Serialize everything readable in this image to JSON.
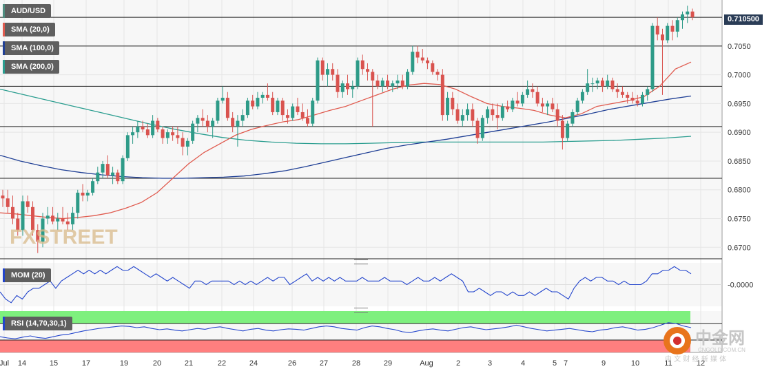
{
  "symbol": "AUD/USD",
  "indicators": {
    "sma20": "SMA (20,0)",
    "sma100": "SMA (100,0)",
    "sma200": "SMA (200,0)",
    "mom": "MOM (20)",
    "rsi": "RSI (14,70,30,1)"
  },
  "current_price": "0.710500",
  "watermark": "FXSTREET",
  "logo_text": {
    "brand": "中金网",
    "domain": "CNGOLD.COM.CN",
    "sub": "中 文 财 经 新 媒 体"
  },
  "colors": {
    "candle_up": "#2e9b88",
    "candle_down": "#d9534f",
    "sma20": "#e05a4e",
    "sma100": "#1f3f95",
    "sma200": "#2a9d8f",
    "mom": "#2244cc",
    "rsi_line": "#2244cc",
    "rsi_overbought": "#7ef07e",
    "rsi_oversold": "#ff7f7f"
  },
  "chart_data": [
    {
      "type": "candlestick",
      "title": "AUD/USD",
      "ylim": [
        0.668,
        0.713
      ],
      "y_ticks": [
        "0.6700",
        "0.6750",
        "0.6800",
        "0.6850",
        "0.6900",
        "0.6950",
        "0.7000",
        "0.7050"
      ],
      "x_ticks": [
        "Jul",
        "14",
        "15",
        "17",
        "19",
        "20",
        "21",
        "22",
        "24",
        "26",
        "27",
        "28",
        "29",
        "Aug",
        "2",
        "3",
        "4",
        "5",
        "7",
        "9",
        "10",
        "11",
        "12"
      ],
      "horizontal_levels": [
        0.71,
        0.705,
        0.698,
        0.691,
        0.682,
        0.668
      ],
      "candles": [
        [
          0.679,
          0.68,
          0.677,
          0.6785
        ],
        [
          0.6785,
          0.68,
          0.676,
          0.677
        ],
        [
          0.677,
          0.679,
          0.674,
          0.675
        ],
        [
          0.675,
          0.676,
          0.672,
          0.673
        ],
        [
          0.673,
          0.679,
          0.672,
          0.678
        ],
        [
          0.678,
          0.679,
          0.676,
          0.677
        ],
        [
          0.677,
          0.678,
          0.672,
          0.673
        ],
        [
          0.673,
          0.674,
          0.669,
          0.671
        ],
        [
          0.671,
          0.676,
          0.67,
          0.675
        ],
        [
          0.675,
          0.677,
          0.674,
          0.6755
        ],
        [
          0.6755,
          0.677,
          0.674,
          0.6745
        ],
        [
          0.6745,
          0.676,
          0.673,
          0.675
        ],
        [
          0.675,
          0.677,
          0.674,
          0.6745
        ],
        [
          0.6745,
          0.676,
          0.673,
          0.674
        ],
        [
          0.674,
          0.677,
          0.673,
          0.676
        ],
        [
          0.676,
          0.68,
          0.675,
          0.6795
        ],
        [
          0.6795,
          0.681,
          0.678,
          0.679
        ],
        [
          0.679,
          0.68,
          0.678,
          0.6795
        ],
        [
          0.6795,
          0.682,
          0.679,
          0.6815
        ],
        [
          0.6815,
          0.684,
          0.681,
          0.683
        ],
        [
          0.683,
          0.685,
          0.682,
          0.6845
        ],
        [
          0.6845,
          0.686,
          0.682,
          0.6825
        ],
        [
          0.6825,
          0.684,
          0.681,
          0.683
        ],
        [
          0.683,
          0.6835,
          0.681,
          0.6815
        ],
        [
          0.6815,
          0.686,
          0.681,
          0.6855
        ],
        [
          0.6855,
          0.69,
          0.685,
          0.6895
        ],
        [
          0.6895,
          0.691,
          0.688,
          0.69
        ],
        [
          0.69,
          0.692,
          0.689,
          0.691
        ],
        [
          0.691,
          0.692,
          0.69,
          0.6905
        ],
        [
          0.6905,
          0.6915,
          0.689,
          0.6895
        ],
        [
          0.6895,
          0.693,
          0.689,
          0.692
        ],
        [
          0.692,
          0.6925,
          0.69,
          0.6905
        ],
        [
          0.6905,
          0.691,
          0.688,
          0.689
        ],
        [
          0.689,
          0.6905,
          0.688,
          0.69
        ],
        [
          0.69,
          0.691,
          0.6885,
          0.6895
        ],
        [
          0.6895,
          0.691,
          0.688,
          0.689
        ],
        [
          0.689,
          0.69,
          0.686,
          0.6875
        ],
        [
          0.6875,
          0.689,
          0.686,
          0.6885
        ],
        [
          0.6885,
          0.692,
          0.688,
          0.6915
        ],
        [
          0.6915,
          0.693,
          0.69,
          0.6925
        ],
        [
          0.6925,
          0.694,
          0.691,
          0.692
        ],
        [
          0.692,
          0.693,
          0.69,
          0.691
        ],
        [
          0.691,
          0.6925,
          0.689,
          0.692
        ],
        [
          0.692,
          0.696,
          0.6915,
          0.6955
        ],
        [
          0.6955,
          0.698,
          0.695,
          0.696
        ],
        [
          0.696,
          0.697,
          0.692,
          0.6925
        ],
        [
          0.6925,
          0.6935,
          0.69,
          0.691
        ],
        [
          0.691,
          0.693,
          0.6875,
          0.692
        ],
        [
          0.692,
          0.694,
          0.691,
          0.693
        ],
        [
          0.693,
          0.696,
          0.6925,
          0.6955
        ],
        [
          0.6955,
          0.6965,
          0.694,
          0.6945
        ],
        [
          0.6945,
          0.697,
          0.694,
          0.696
        ],
        [
          0.696,
          0.697,
          0.695,
          0.6965
        ],
        [
          0.6965,
          0.6985,
          0.6955,
          0.696
        ],
        [
          0.696,
          0.697,
          0.693,
          0.6935
        ],
        [
          0.6935,
          0.696,
          0.693,
          0.6955
        ],
        [
          0.6955,
          0.696,
          0.692,
          0.693
        ],
        [
          0.693,
          0.694,
          0.6915,
          0.6925
        ],
        [
          0.6925,
          0.695,
          0.692,
          0.6945
        ],
        [
          0.6945,
          0.696,
          0.693,
          0.6935
        ],
        [
          0.6935,
          0.695,
          0.692,
          0.6925
        ],
        [
          0.6925,
          0.694,
          0.691,
          0.6915
        ],
        [
          0.6915,
          0.696,
          0.691,
          0.6955
        ],
        [
          0.6955,
          0.703,
          0.695,
          0.7025
        ],
        [
          0.7025,
          0.703,
          0.699,
          0.7
        ],
        [
          0.7,
          0.702,
          0.698,
          0.701
        ],
        [
          0.701,
          0.702,
          0.699,
          0.7
        ],
        [
          0.7,
          0.701,
          0.696,
          0.697
        ],
        [
          0.697,
          0.699,
          0.696,
          0.6985
        ],
        [
          0.6985,
          0.7,
          0.6965,
          0.6975
        ],
        [
          0.6975,
          0.699,
          0.696,
          0.698
        ],
        [
          0.698,
          0.703,
          0.6975,
          0.7025
        ],
        [
          0.7025,
          0.7035,
          0.7,
          0.701
        ],
        [
          0.701,
          0.702,
          0.699,
          0.7005
        ],
        [
          0.7005,
          0.701,
          0.691,
          0.699
        ],
        [
          0.699,
          0.7,
          0.6975,
          0.698
        ],
        [
          0.698,
          0.6995,
          0.697,
          0.699
        ],
        [
          0.699,
          0.7,
          0.6975,
          0.698
        ],
        [
          0.698,
          0.699,
          0.697,
          0.6985
        ],
        [
          0.6985,
          0.7,
          0.6975,
          0.699
        ],
        [
          0.699,
          0.7,
          0.6975,
          0.698
        ],
        [
          0.698,
          0.701,
          0.6975,
          0.7005
        ],
        [
          0.7005,
          0.705,
          0.7,
          0.704
        ],
        [
          0.704,
          0.705,
          0.702,
          0.703
        ],
        [
          0.703,
          0.7045,
          0.702,
          0.7025
        ],
        [
          0.7025,
          0.703,
          0.701,
          0.702
        ],
        [
          0.702,
          0.7025,
          0.7,
          0.7005
        ],
        [
          0.7005,
          0.701,
          0.699,
          0.7
        ],
        [
          0.7,
          0.701,
          0.692,
          0.693
        ],
        [
          0.693,
          0.697,
          0.692,
          0.696
        ],
        [
          0.696,
          0.697,
          0.693,
          0.694
        ],
        [
          0.694,
          0.695,
          0.6915,
          0.692
        ],
        [
          0.692,
          0.694,
          0.691,
          0.693
        ],
        [
          0.693,
          0.695,
          0.692,
          0.694
        ],
        [
          0.694,
          0.695,
          0.691,
          0.692
        ],
        [
          0.692,
          0.6925,
          0.688,
          0.689
        ],
        [
          0.689,
          0.693,
          0.6885,
          0.6925
        ],
        [
          0.6925,
          0.6945,
          0.6915,
          0.694
        ],
        [
          0.694,
          0.695,
          0.692,
          0.693
        ],
        [
          0.693,
          0.695,
          0.6905,
          0.6925
        ],
        [
          0.6925,
          0.695,
          0.692,
          0.6945
        ],
        [
          0.6945,
          0.6955,
          0.6935,
          0.694
        ],
        [
          0.694,
          0.696,
          0.6935,
          0.6955
        ],
        [
          0.6955,
          0.697,
          0.6945,
          0.695
        ],
        [
          0.695,
          0.697,
          0.6945,
          0.6965
        ],
        [
          0.6965,
          0.699,
          0.696,
          0.6975
        ],
        [
          0.6975,
          0.6985,
          0.696,
          0.697
        ],
        [
          0.697,
          0.698,
          0.6945,
          0.695
        ],
        [
          0.695,
          0.696,
          0.6935,
          0.6945
        ],
        [
          0.6945,
          0.6955,
          0.693,
          0.695
        ],
        [
          0.695,
          0.696,
          0.6935,
          0.694
        ],
        [
          0.694,
          0.695,
          0.691,
          0.692
        ],
        [
          0.692,
          0.693,
          0.687,
          0.689
        ],
        [
          0.689,
          0.692,
          0.6885,
          0.6915
        ],
        [
          0.6915,
          0.694,
          0.691,
          0.6935
        ],
        [
          0.6935,
          0.696,
          0.693,
          0.6955
        ],
        [
          0.6955,
          0.6975,
          0.695,
          0.697
        ],
        [
          0.697,
          0.701,
          0.6965,
          0.6985
        ],
        [
          0.6985,
          0.6995,
          0.697,
          0.6985
        ],
        [
          0.6985,
          0.6995,
          0.6975,
          0.699
        ],
        [
          0.699,
          0.6995,
          0.697,
          0.698
        ],
        [
          0.698,
          0.7,
          0.6975,
          0.699
        ],
        [
          0.699,
          0.6995,
          0.697,
          0.6975
        ],
        [
          0.6975,
          0.6985,
          0.696,
          0.697
        ],
        [
          0.697,
          0.698,
          0.696,
          0.6965
        ],
        [
          0.6965,
          0.697,
          0.695,
          0.696
        ],
        [
          0.696,
          0.697,
          0.695,
          0.6955
        ],
        [
          0.6955,
          0.6965,
          0.6945,
          0.695
        ],
        [
          0.695,
          0.697,
          0.6945,
          0.6965
        ],
        [
          0.6965,
          0.698,
          0.6955,
          0.6975
        ],
        [
          0.6975,
          0.709,
          0.697,
          0.7085
        ],
        [
          0.7085,
          0.71,
          0.706,
          0.707
        ],
        [
          0.707,
          0.708,
          0.6965,
          0.706
        ],
        [
          0.706,
          0.709,
          0.7055,
          0.7085
        ],
        [
          0.7085,
          0.7095,
          0.706,
          0.7075
        ],
        [
          0.7075,
          0.71,
          0.7065,
          0.7095
        ],
        [
          0.7095,
          0.711,
          0.708,
          0.7105
        ],
        [
          0.7105,
          0.712,
          0.709,
          0.711
        ],
        [
          0.711,
          0.7115,
          0.7095,
          0.71
        ]
      ],
      "sma20": [
        0.676,
        0.6758,
        0.6755,
        0.6752,
        0.675,
        0.6752,
        0.6755,
        0.676,
        0.6768,
        0.6778,
        0.6795,
        0.682,
        0.6845,
        0.6865,
        0.688,
        0.6895,
        0.6905,
        0.6912,
        0.6918,
        0.6922,
        0.693,
        0.6938,
        0.6945,
        0.6955,
        0.6965,
        0.6975,
        0.6982,
        0.6985,
        0.6983,
        0.6975,
        0.6962,
        0.695,
        0.6945,
        0.6942,
        0.6938,
        0.693,
        0.6925,
        0.6932,
        0.6945,
        0.695,
        0.6955,
        0.6962,
        0.698,
        0.701,
        0.7022
      ],
      "sma100": [
        0.686,
        0.685,
        0.6842,
        0.6835,
        0.683,
        0.6826,
        0.6823,
        0.6821,
        0.682,
        0.682,
        0.6821,
        0.6822,
        0.6824,
        0.6828,
        0.6833,
        0.684,
        0.6848,
        0.6856,
        0.6864,
        0.6872,
        0.6878,
        0.6883,
        0.6888,
        0.6894,
        0.69,
        0.6906,
        0.6912,
        0.6918,
        0.6925,
        0.6932,
        0.694,
        0.6946,
        0.6952,
        0.6958,
        0.6963
      ],
      "sma200": [
        0.6975,
        0.6965,
        0.6955,
        0.6945,
        0.6935,
        0.6925,
        0.6915,
        0.6906,
        0.6898,
        0.6891,
        0.6886,
        0.6883,
        0.6881,
        0.688,
        0.688,
        0.6881,
        0.6882,
        0.6883,
        0.6883,
        0.6883,
        0.6883,
        0.6883,
        0.6883,
        0.6884,
        0.6885,
        0.6886,
        0.6888,
        0.689,
        0.6893
      ]
    },
    {
      "type": "line",
      "title": "MOM (20)",
      "y_ticks": [
        "-0.0000"
      ],
      "ylim": [
        -0.006,
        0.006
      ],
      "values": [
        -0.002,
        -0.004,
        -0.005,
        -0.003,
        -0.004,
        -0.002,
        -0.001,
        -0.001,
        0.0,
        0.001,
        -0.001,
        0.001,
        0.002,
        0.003,
        0.004,
        0.003,
        0.004,
        0.003,
        0.004,
        0.003,
        0.004,
        0.005,
        0.004,
        0.004,
        0.005,
        0.004,
        0.003,
        0.002,
        0.003,
        0.002,
        0.001,
        0.002,
        0.001,
        0.0,
        -0.001,
        0.001,
        0.001,
        0.0,
        0.001,
        0.001,
        0.001,
        0.001,
        0.0,
        0.001,
        0.0,
        0.001,
        0.0,
        0.001,
        0.002,
        0.001,
        0.002,
        0.002,
        0.0,
        0.001,
        0.002,
        0.003,
        0.001,
        0.002,
        0.001,
        0.002,
        0.001,
        0.002,
        0.001,
        0.001,
        0.001,
        0.002,
        0.001,
        0.001,
        0.001,
        0.002,
        0.001,
        0.001,
        0.001,
        0.0,
        0.001,
        0.002,
        0.001,
        0.001,
        0.002,
        0.001,
        0.002,
        0.003,
        0.002,
        0.001,
        -0.002,
        -0.002,
        -0.001,
        -0.002,
        -0.003,
        -0.002,
        -0.002,
        -0.003,
        -0.002,
        -0.003,
        -0.003,
        -0.002,
        -0.003,
        -0.002,
        -0.001,
        -0.002,
        -0.002,
        -0.003,
        -0.004,
        -0.001,
        0.001,
        0.002,
        0.001,
        0.002,
        0.002,
        0.001,
        0.001,
        0.0,
        0.001,
        0.0,
        0.0,
        0.0,
        0.001,
        0.003,
        0.003,
        0.004,
        0.004,
        0.005,
        0.004,
        0.004,
        0.003
      ]
    },
    {
      "type": "line",
      "title": "RSI (14,70,30,1)",
      "ylim": [
        0,
        100
      ],
      "levels": [
        70,
        30
      ],
      "values": [
        38,
        35,
        33,
        37,
        40,
        36,
        34,
        38,
        42,
        44,
        48,
        52,
        55,
        58,
        60,
        62,
        64,
        63,
        60,
        62,
        58,
        55,
        57,
        54,
        52,
        55,
        58,
        56,
        60,
        62,
        58,
        55,
        52,
        56,
        58,
        54,
        52,
        55,
        57,
        56,
        54,
        58,
        62,
        64,
        62,
        58,
        56,
        54,
        60,
        64,
        62,
        58,
        55,
        50,
        48,
        52,
        55,
        57,
        54,
        52,
        56,
        60,
        62,
        58,
        55,
        57,
        59,
        62,
        66,
        62,
        58,
        55,
        52,
        54,
        56,
        58,
        55,
        52,
        50,
        54,
        56,
        60,
        62,
        58,
        54,
        56,
        60,
        66,
        72,
        70,
        64,
        60
      ]
    }
  ]
}
